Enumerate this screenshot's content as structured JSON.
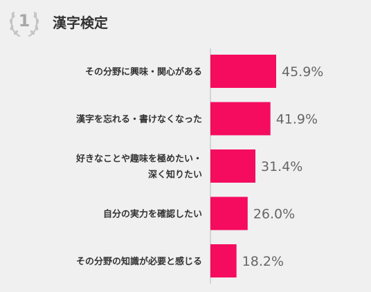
{
  "header": {
    "rank": "1",
    "title": "漢字検定"
  },
  "chart_data": {
    "type": "bar",
    "orientation": "horizontal",
    "categories": [
      [
        "その分野に興味・関心がある"
      ],
      [
        "漢字を忘れる・書けなくなった"
      ],
      [
        "好きなことや趣味を極めたい・",
        "深く知りたい"
      ],
      [
        "自分の実力を確認したい"
      ],
      [
        "その分野の知識が必要と感じる"
      ]
    ],
    "values": [
      45.9,
      41.9,
      31.4,
      26.0,
      18.2
    ],
    "value_labels": [
      "45.9%",
      "41.9%",
      "31.4%",
      "26.0%",
      "18.2%"
    ],
    "bar_color": "#f50c5f",
    "axis_color": "#b8b8b8",
    "title": "",
    "xlabel": "",
    "ylabel": ""
  }
}
